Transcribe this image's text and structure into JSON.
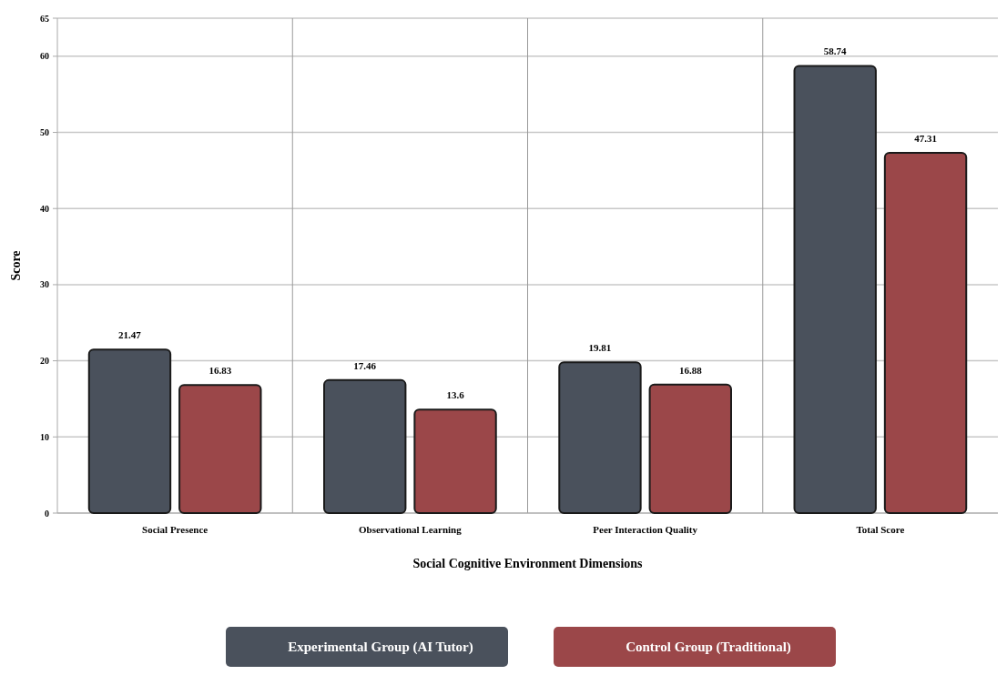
{
  "chart_data": {
    "type": "bar",
    "xlabel": "Social Cognitive Environment Dimensions",
    "ylabel": "Score",
    "categories": [
      "Social Presence",
      "Observational Learning",
      "Peer Interaction Quality",
      "Total Score"
    ],
    "series": [
      {
        "name": "Experimental Group (AI Tutor)",
        "color": "#4a515c",
        "values": [
          21.47,
          17.46,
          19.81,
          58.74
        ]
      },
      {
        "name": "Control Group (Traditional)",
        "color": "#9b4749",
        "values": [
          16.83,
          13.6,
          16.88,
          47.31
        ]
      }
    ],
    "ylim": [
      0,
      65
    ],
    "yticks": [
      0,
      10,
      20,
      30,
      40,
      50,
      60,
      65
    ],
    "grid": true,
    "data_labels": true,
    "legend": "bottom"
  }
}
